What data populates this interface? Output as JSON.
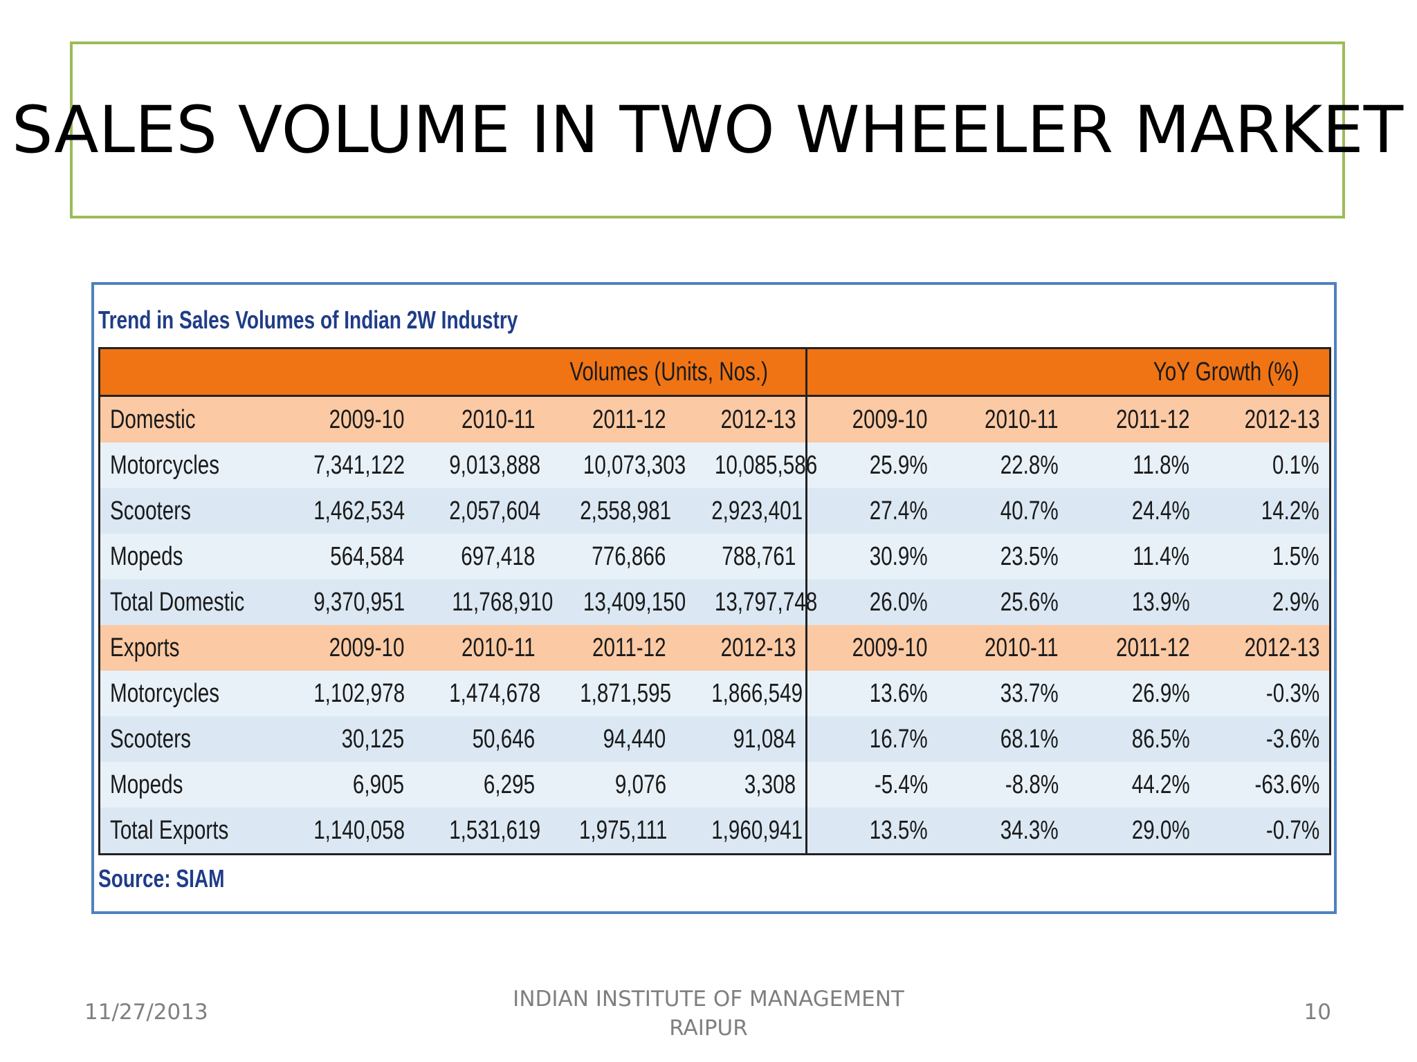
{
  "slide": {
    "title": "SALES VOLUME IN TWO WHEELER MARKET",
    "footer_date": "11/27/2013",
    "footer_center_line1": "INDIAN INSTITUTE OF MANAGEMENT",
    "footer_center_line2": "RAIPUR",
    "page_number": "10"
  },
  "table": {
    "caption": "Trend in Sales Volumes of Indian 2W Industry",
    "group_headers": [
      "Volumes (Units, Nos.)",
      "YoY Growth (%)"
    ],
    "sections": [
      {
        "label": "Domestic",
        "years": [
          "2009-10",
          "2010-11",
          "2011-12",
          "2012-13",
          "2009-10",
          "2010-11",
          "2011-12",
          "2012-13"
        ],
        "rows": [
          {
            "label": "Motorcycles",
            "values": [
              "7,341,122",
              "9,013,888",
              "10,073,303",
              "10,085,586",
              "25.9%",
              "22.8%",
              "11.8%",
              "0.1%"
            ]
          },
          {
            "label": "Scooters",
            "values": [
              "1,462,534",
              "2,057,604",
              "2,558,981",
              "2,923,401",
              "27.4%",
              "40.7%",
              "24.4%",
              "14.2%"
            ]
          },
          {
            "label": "Mopeds",
            "values": [
              "564,584",
              "697,418",
              "776,866",
              "788,761",
              "30.9%",
              "23.5%",
              "11.4%",
              "1.5%"
            ]
          },
          {
            "label": "Total Domestic",
            "values": [
              "9,370,951",
              "11,768,910",
              "13,409,150",
              "13,797,748",
              "26.0%",
              "25.6%",
              "13.9%",
              "2.9%"
            ]
          }
        ]
      },
      {
        "label": "Exports",
        "years": [
          "2009-10",
          "2010-11",
          "2011-12",
          "2012-13",
          "2009-10",
          "2010-11",
          "2011-12",
          "2012-13"
        ],
        "rows": [
          {
            "label": "Motorcycles",
            "values": [
              "1,102,978",
              "1,474,678",
              "1,871,595",
              "1,866,549",
              "13.6%",
              "33.7%",
              "26.9%",
              "-0.3%"
            ]
          },
          {
            "label": "Scooters",
            "values": [
              "30,125",
              "50,646",
              "94,440",
              "91,084",
              "16.7%",
              "68.1%",
              "86.5%",
              "-3.6%"
            ]
          },
          {
            "label": "Mopeds",
            "values": [
              "6,905",
              "6,295",
              "9,076",
              "3,308",
              "-5.4%",
              "-8.8%",
              "44.2%",
              "-63.6%"
            ]
          },
          {
            "label": "Total Exports",
            "values": [
              "1,140,058",
              "1,531,619",
              "1,975,111",
              "1,960,941",
              "13.5%",
              "34.3%",
              "29.0%",
              "-0.7%"
            ]
          }
        ]
      }
    ],
    "source": "Source: SIAM"
  },
  "colors": {
    "title_border": "#9bbb59",
    "table_frame_border": "#4f81bd",
    "header_orange": "#f07414",
    "section_peach": "#fbc9a3",
    "caption_blue": "#1f3c88"
  }
}
